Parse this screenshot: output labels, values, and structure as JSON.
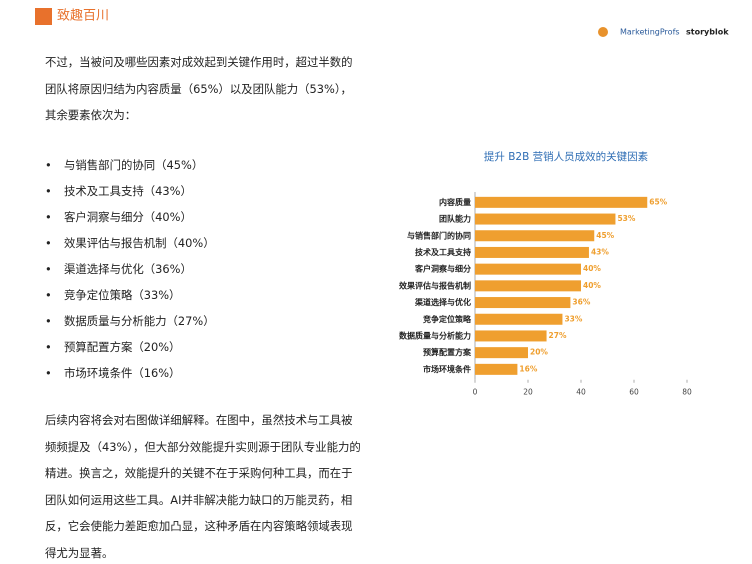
{
  "header": {
    "logo": "致趣百川",
    "partners": [
      "MarketingProfs",
      "storyblok"
    ]
  },
  "paragraphs": [
    "不过，当被问及哪些因素对成效起到关键作用时，超过半数的团队将原因归结为内容质量（65%）以及团队能力（53%），其余要素依次为：",
    "后续内容将会对右图做详细解释。在图中，虽然技术与工具被频频提及（43%），但大部分效能提升实则源于团队专业能力的精进。换言之，效能提升的关键不在于采购何种工具，而在于团队如何运用这些工具。AI并非解决能力缺口的万能灵药，相反，它会使能力差距愈加凸显，这种矛盾在内容策略领域表现得尤为显著。"
  ],
  "bullets": [
    "与销售部门的协同（45%）",
    "技术及工具支持（43%）",
    "客户洞察与细分（40%）",
    "效果评估与报告机制（40%）",
    "渠道选择与优化（36%）",
    "竞争定位策略（33%）",
    "数据质量与分析能力（27%）",
    "预算配置方案（20%）",
    "市场环境条件（16%）"
  ],
  "chart_data": {
    "type": "hbar",
    "title": "提升 B2B 营销人员成效的关键因素",
    "categories": [
      "内容质量",
      "团队能力",
      "与销售部门的协同",
      "技术及工具支持",
      "客户洞察与细分",
      "效果评估与报告机制",
      "渠道选择与优化",
      "竞争定位策略",
      "数据质量与分析能力",
      "预算配置方案",
      "市场环境条件"
    ],
    "values": [
      65,
      53,
      45,
      43,
      40,
      40,
      36,
      33,
      27,
      20,
      16
    ],
    "value_labels": [
      "65%",
      "53%",
      "45%",
      "43%",
      "40%",
      "40%",
      "36%",
      "33%",
      "27%",
      "20%",
      "16%"
    ],
    "color": "#ef9f2f",
    "title_color": "#2e6db4",
    "xlim": [
      0,
      80
    ],
    "xticks": [
      0,
      20,
      40,
      60,
      80
    ]
  }
}
